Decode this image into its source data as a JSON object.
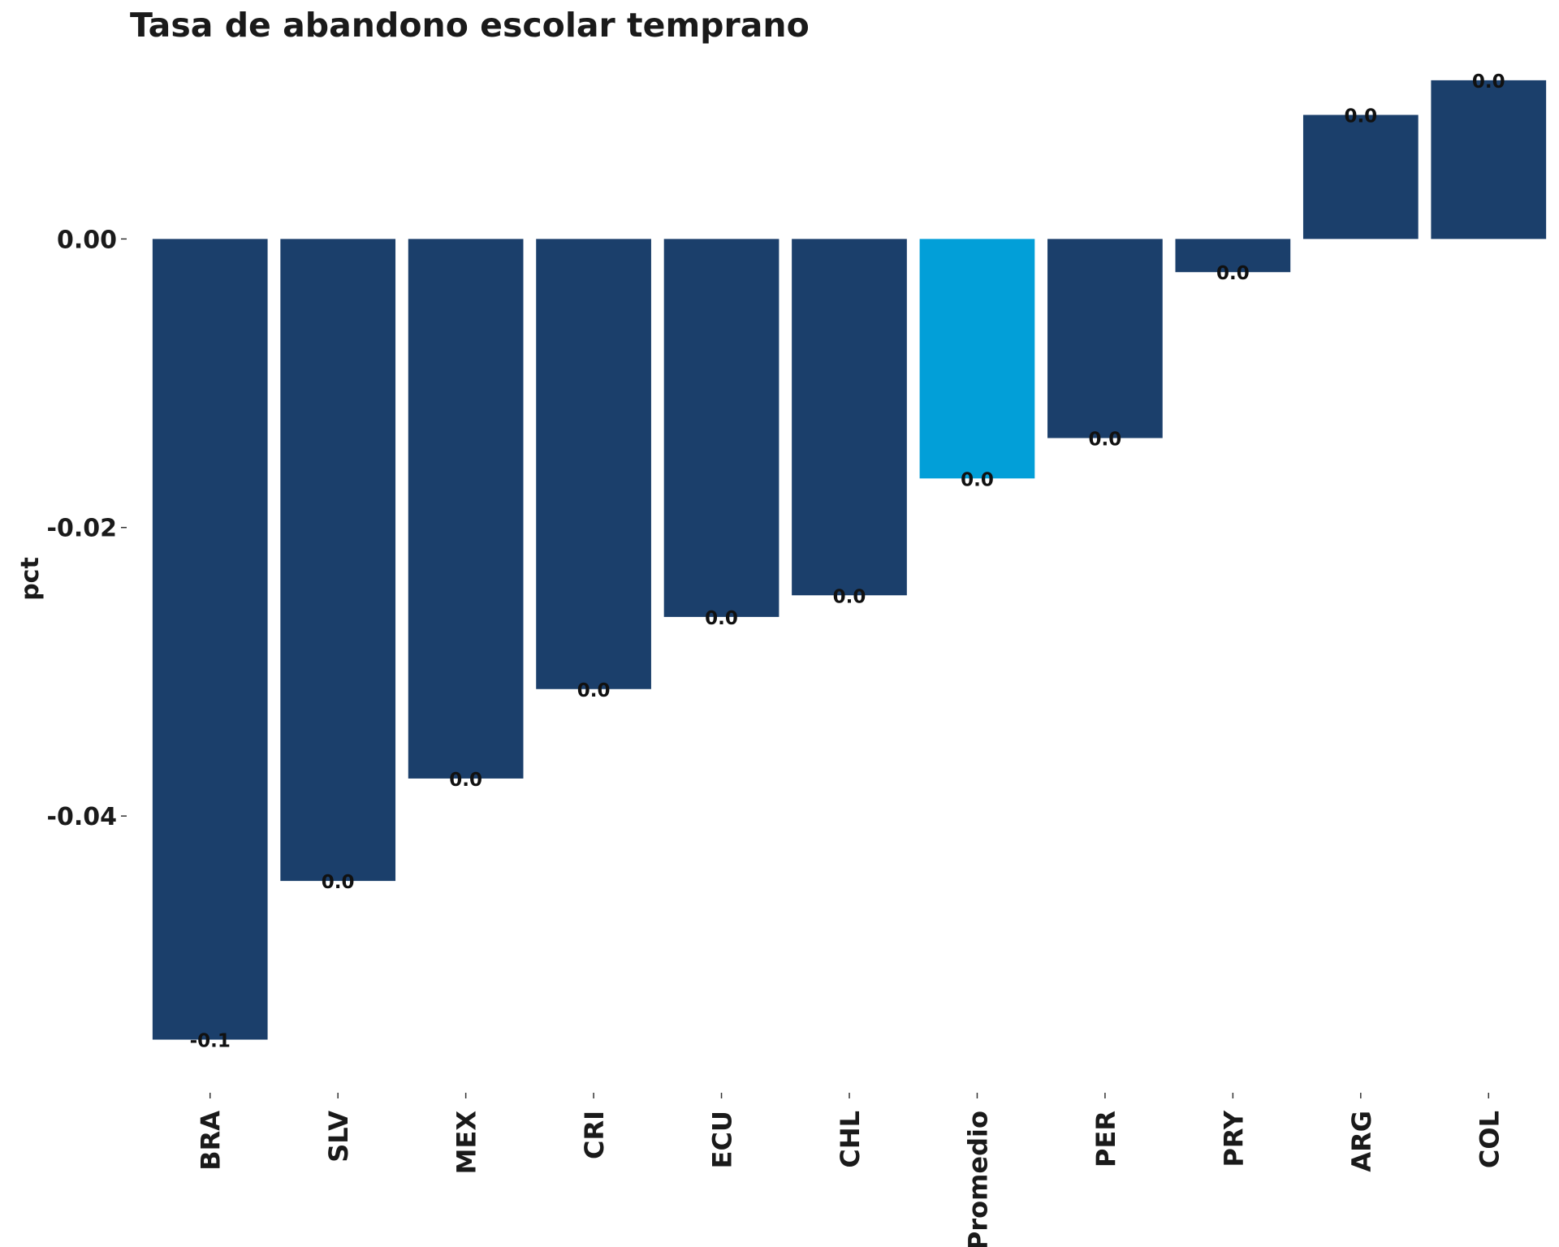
{
  "chart_data": {
    "type": "bar",
    "title": "Tasa de abandono escolar temprano",
    "xlabel": "",
    "ylabel": "pct",
    "ylim": [
      -0.058,
      0.0115
    ],
    "yticks": [
      0.0,
      -0.02,
      -0.04
    ],
    "ytick_labels": [
      "0.00",
      "-0.02",
      "-0.04"
    ],
    "grid": false,
    "legend": "none",
    "categories": [
      "BRA",
      "SLV",
      "MEX",
      "CRI",
      "ECU",
      "CHL",
      "Promedio",
      "PER",
      "PRY",
      "ARG",
      "COL"
    ],
    "values": [
      -0.0555,
      -0.0445,
      -0.0374,
      -0.0312,
      -0.0262,
      -0.0247,
      -0.0166,
      -0.0138,
      -0.0023,
      0.0086,
      0.011
    ],
    "data_labels": [
      "-0.1",
      "0.0",
      "0.0",
      "0.0",
      "0.0",
      "0.0",
      "0.0",
      "0.0",
      "0.0",
      "0.0",
      "0.0"
    ],
    "bar_color": "#1b3f6b",
    "highlight_color": "#029fd8",
    "highlight_category": "Promedio",
    "text_color": "#1a1a1a"
  }
}
